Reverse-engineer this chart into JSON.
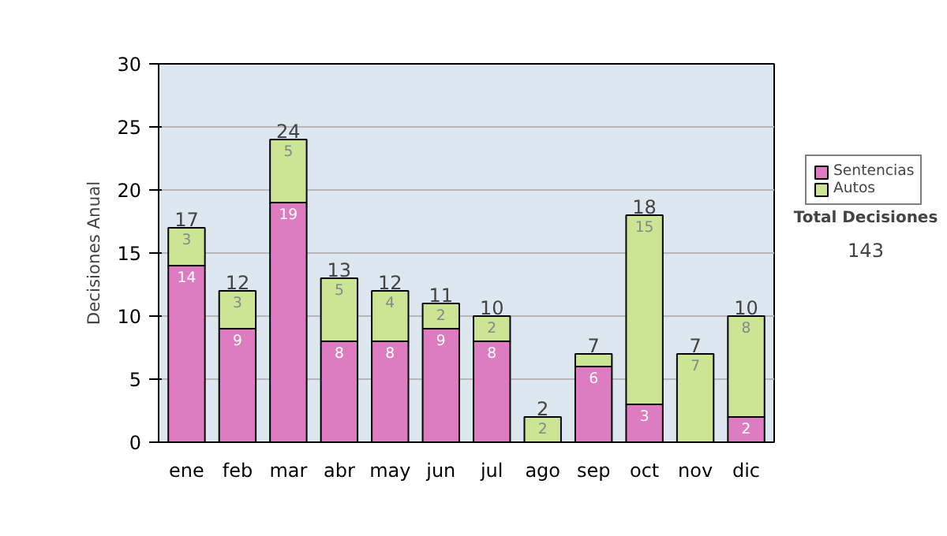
{
  "chart_data": {
    "type": "bar",
    "stacked": true,
    "ylabel": "Decisiones Anual",
    "categories": [
      "ene",
      "feb",
      "mar",
      "abr",
      "may",
      "jun",
      "jul",
      "ago",
      "sep",
      "oct",
      "nov",
      "dic"
    ],
    "series": [
      {
        "name": "Sentencias",
        "color": "#dd7cc0",
        "values": [
          14,
          9,
          19,
          8,
          8,
          9,
          8,
          0,
          6,
          3,
          0,
          2
        ],
        "value_labels": [
          "14",
          "9",
          "19",
          "8",
          "8",
          "9",
          "8",
          null,
          "6",
          "3",
          null,
          "2"
        ]
      },
      {
        "name": "Autos",
        "color": "#cce595",
        "values": [
          3,
          3,
          5,
          5,
          4,
          2,
          2,
          2,
          1,
          15,
          7,
          8
        ],
        "value_labels": [
          "3",
          "3",
          "5",
          "5",
          "4",
          "2",
          "2",
          "2",
          null,
          "15",
          "7",
          "8"
        ]
      }
    ],
    "totals": [
      "17",
      "12",
      "24",
      "13",
      "12",
      "11",
      "10",
      "2",
      "7",
      "18",
      "7",
      "10"
    ],
    "ylim": [
      0,
      30
    ],
    "yticks": [
      0,
      5,
      10,
      15,
      20,
      25,
      30
    ],
    "grid": "y",
    "legend": "right",
    "annotations": [
      "Total Decisiones",
      "143"
    ]
  }
}
